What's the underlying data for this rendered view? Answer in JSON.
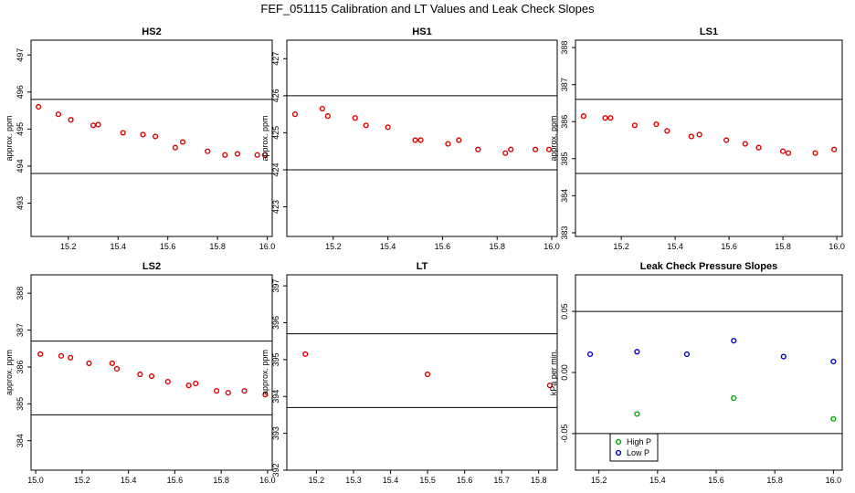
{
  "title": "FEF_051115  Calibration and LT Values and Leak Check Slopes",
  "chart_data": [
    {
      "type": "scatter",
      "title": "HS2",
      "xlabel": "",
      "ylabel": "approx. ppm",
      "xlim": [
        15.05,
        16.02
      ],
      "ylim": [
        492.1,
        497.4
      ],
      "xticks": [
        15.2,
        15.4,
        15.6,
        15.8,
        16.0
      ],
      "xticklabels": [
        "15.2",
        "15.4",
        "15.6",
        "15.8",
        "16.0"
      ],
      "yticks": [
        493,
        494,
        495,
        496,
        497
      ],
      "yticklabels": [
        "493",
        "494",
        "495",
        "496",
        "497"
      ],
      "hlines": [
        495.8,
        493.8
      ],
      "series": [
        {
          "marker": "circle",
          "color": "#dd0000",
          "x": [
            15.08,
            15.16,
            15.21,
            15.3,
            15.32,
            15.42,
            15.5,
            15.55,
            15.63,
            15.66,
            15.76,
            15.83,
            15.88,
            15.96,
            15.99
          ],
          "y": [
            495.6,
            495.4,
            495.25,
            495.1,
            495.12,
            494.9,
            494.85,
            494.8,
            494.5,
            494.65,
            494.4,
            494.3,
            494.33,
            494.3,
            494.3
          ]
        }
      ]
    },
    {
      "type": "scatter",
      "title": "HS1",
      "xlabel": "",
      "ylabel": "approx. ppm",
      "xlim": [
        15.03,
        16.02
      ],
      "ylim": [
        422.2,
        427.5
      ],
      "xticks": [
        15.2,
        15.4,
        15.6,
        15.8,
        16.0
      ],
      "xticklabels": [
        "15.2",
        "15.4",
        "15.6",
        "15.8",
        "16.0"
      ],
      "yticks": [
        423,
        424,
        425,
        426,
        427
      ],
      "yticklabels": [
        "423",
        "424",
        "425",
        "426",
        "427"
      ],
      "hlines": [
        426.0,
        424.0
      ],
      "series": [
        {
          "marker": "circle",
          "color": "#dd0000",
          "x": [
            15.06,
            15.16,
            15.18,
            15.28,
            15.32,
            15.4,
            15.5,
            15.52,
            15.62,
            15.66,
            15.73,
            15.83,
            15.85,
            15.94,
            15.99
          ],
          "y": [
            425.5,
            425.65,
            425.45,
            425.4,
            425.2,
            425.15,
            424.8,
            424.8,
            424.7,
            424.8,
            424.55,
            424.45,
            424.55,
            424.55,
            424.55
          ]
        }
      ]
    },
    {
      "type": "scatter",
      "title": "LS1",
      "xlabel": "",
      "ylabel": "approx. ppm",
      "xlim": [
        15.03,
        16.02
      ],
      "ylim": [
        382.9,
        388.2
      ],
      "xticks": [
        15.2,
        15.4,
        15.6,
        15.8,
        16.0
      ],
      "xticklabels": [
        "15.2",
        "15.4",
        "15.6",
        "15.8",
        "16.0"
      ],
      "yticks": [
        383,
        384,
        385,
        386,
        387,
        388
      ],
      "yticklabels": [
        "383",
        "384",
        "385",
        "386",
        "387",
        "388"
      ],
      "hlines": [
        386.6,
        384.6
      ],
      "series": [
        {
          "marker": "circle",
          "color": "#dd0000",
          "x": [
            15.06,
            15.14,
            15.16,
            15.25,
            15.33,
            15.37,
            15.46,
            15.49,
            15.59,
            15.66,
            15.71,
            15.8,
            15.82,
            15.92,
            15.99
          ],
          "y": [
            386.15,
            386.1,
            386.1,
            385.9,
            385.93,
            385.75,
            385.6,
            385.65,
            385.5,
            385.4,
            385.3,
            385.2,
            385.15,
            385.15,
            385.25
          ]
        }
      ]
    },
    {
      "type": "scatter",
      "title": "LS2",
      "xlabel": "",
      "ylabel": "approx. ppm",
      "xlim": [
        14.98,
        16.02
      ],
      "ylim": [
        383.2,
        388.5
      ],
      "xticks": [
        15.0,
        15.2,
        15.4,
        15.6,
        15.8,
        16.0
      ],
      "xticklabels": [
        "15.0",
        "15.2",
        "15.4",
        "15.6",
        "15.8",
        "16.0"
      ],
      "yticks": [
        384,
        385,
        386,
        387,
        388
      ],
      "yticklabels": [
        "384",
        "385",
        "386",
        "387",
        "388"
      ],
      "hlines": [
        386.7,
        384.7
      ],
      "series": [
        {
          "marker": "circle",
          "color": "#dd0000",
          "x": [
            15.02,
            15.11,
            15.15,
            15.23,
            15.33,
            15.35,
            15.45,
            15.5,
            15.57,
            15.66,
            15.69,
            15.78,
            15.83,
            15.9,
            15.99
          ],
          "y": [
            386.35,
            386.3,
            386.25,
            386.1,
            386.1,
            385.95,
            385.8,
            385.75,
            385.6,
            385.5,
            385.55,
            385.35,
            385.3,
            385.35,
            385.25
          ]
        }
      ]
    },
    {
      "type": "scatter",
      "title": "LT",
      "xlabel": "",
      "ylabel": "approx. ppm",
      "xlim": [
        15.12,
        15.85
      ],
      "ylim": [
        392.0,
        397.3
      ],
      "xticks": [
        15.2,
        15.3,
        15.4,
        15.5,
        15.6,
        15.7,
        15.8
      ],
      "xticklabels": [
        "15.2",
        "15.3",
        "15.4",
        "15.5",
        "15.6",
        "15.7",
        "15.8"
      ],
      "yticks": [
        392,
        393,
        394,
        395,
        396,
        397
      ],
      "yticklabels": [
        "392",
        "393",
        "394",
        "395",
        "396",
        "397"
      ],
      "hlines": [
        395.7,
        393.7
      ],
      "series": [
        {
          "marker": "circle",
          "color": "#dd0000",
          "x": [
            15.17,
            15.5,
            15.83
          ],
          "y": [
            395.15,
            394.6,
            394.3
          ]
        }
      ]
    },
    {
      "type": "scatter",
      "title": "Leak Check Pressure Slopes",
      "xlabel": "",
      "ylabel": "kPa per min.",
      "xlim": [
        15.12,
        16.03
      ],
      "ylim": [
        -0.08,
        0.08
      ],
      "xticks": [
        15.2,
        15.4,
        15.6,
        15.8,
        16.0
      ],
      "xticklabels": [
        "15.2",
        "15.4",
        "15.6",
        "15.8",
        "16.0"
      ],
      "yticks": [
        -0.05,
        0.0,
        0.05
      ],
      "yticklabels": [
        "-0.05",
        "0.00",
        "0.05"
      ],
      "hlines": [
        0.05,
        -0.05
      ],
      "legend": {
        "position": "bottom-left",
        "entries": [
          "High P",
          "Low P"
        ]
      },
      "series": [
        {
          "name": "High P",
          "marker": "circle",
          "color": "#00aa00",
          "x": [
            15.33,
            15.66,
            16.0
          ],
          "y": [
            -0.034,
            -0.021,
            -0.038
          ]
        },
        {
          "name": "Low P",
          "marker": "circle",
          "color": "#0000cc",
          "x": [
            15.17,
            15.33,
            15.5,
            15.66,
            15.83,
            16.0
          ],
          "y": [
            0.015,
            0.017,
            0.015,
            0.026,
            0.013,
            0.009
          ]
        }
      ]
    }
  ]
}
